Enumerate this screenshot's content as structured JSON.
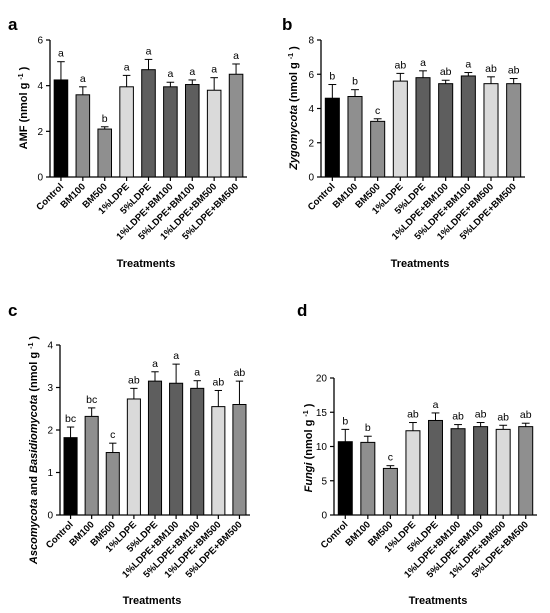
{
  "chart_data": [
    {
      "panel": "a",
      "type": "bar",
      "categories": [
        "Control",
        "BM100",
        "BM500",
        "1%LDPE",
        "5%LDPE",
        "1%LDPE+BM100",
        "5%LDPE+BM100",
        "1%LDPE+BM500",
        "5%LDPE+BM500"
      ],
      "values": [
        4.25,
        3.6,
        2.1,
        3.95,
        4.7,
        3.95,
        4.05,
        3.8,
        4.5
      ],
      "errors": [
        0.8,
        0.35,
        0.1,
        0.5,
        0.45,
        0.2,
        0.2,
        0.55,
        0.45
      ],
      "letters": [
        "a",
        "a",
        "b",
        "a",
        "a",
        "a",
        "a",
        "a",
        "a"
      ],
      "bar_colors": [
        "#000000",
        "#8f8f8f",
        "#8f8f8f",
        "#dadada",
        "#5e5e5e",
        "#5e5e5e",
        "#5e5e5e",
        "#dadada",
        "#8f8f8f"
      ],
      "ylabel": "AMF (nmol g⁻¹)",
      "ylabel_main": "AMF",
      "ylabel_unit": "(nmol g",
      "ylabel_sup": "-1",
      "ylabel_close": ")",
      "xlabel": "Treatments",
      "ylim": [
        0,
        6
      ],
      "yticks": [
        "0",
        "2",
        "4",
        "6"
      ]
    },
    {
      "panel": "b",
      "type": "bar",
      "categories": [
        "Control",
        "BM100",
        "BM500",
        "1%LDPE",
        "5%LDPE",
        "1%LDPE+BM100",
        "5%LDPE+BM100",
        "1%LDPE+BM500",
        "5%LDPE+BM500"
      ],
      "values": [
        4.6,
        4.7,
        3.25,
        5.6,
        5.8,
        5.45,
        5.9,
        5.45,
        5.45
      ],
      "errors": [
        0.8,
        0.4,
        0.15,
        0.45,
        0.4,
        0.2,
        0.2,
        0.4,
        0.3
      ],
      "letters": [
        "b",
        "b",
        "c",
        "ab",
        "a",
        "ab",
        "a",
        "ab",
        "ab"
      ],
      "bar_colors": [
        "#000000",
        "#8f8f8f",
        "#8f8f8f",
        "#dadada",
        "#5e5e5e",
        "#5e5e5e",
        "#5e5e5e",
        "#dadada",
        "#8f8f8f"
      ],
      "ylabel": "Zygomycota (nmol g⁻¹)",
      "ylabel_main": "Zygomycota",
      "ylabel_unit": "(nmol g",
      "ylabel_sup": "-1",
      "ylabel_close": ")",
      "xlabel": "Treatments",
      "ylim": [
        0,
        8
      ],
      "yticks": [
        "0",
        "2",
        "4",
        "6",
        "8"
      ]
    },
    {
      "panel": "c",
      "type": "bar",
      "categories": [
        "Control",
        "BM100",
        "BM500",
        "1%LDPE",
        "5%LDPE",
        "1%LDPE+BM100",
        "5%LDPE+BM100",
        "1%LDPE+BM500",
        "5%LDPE+BM500"
      ],
      "values": [
        1.82,
        2.32,
        1.47,
        2.73,
        3.15,
        3.1,
        2.98,
        2.55,
        2.6
      ],
      "errors": [
        0.25,
        0.2,
        0.22,
        0.25,
        0.22,
        0.45,
        0.18,
        0.38,
        0.55
      ],
      "letters": [
        "bc",
        "bc",
        "c",
        "ab",
        "a",
        "a",
        "a",
        "ab",
        "ab"
      ],
      "bar_colors": [
        "#000000",
        "#8f8f8f",
        "#8f8f8f",
        "#dadada",
        "#5e5e5e",
        "#5e5e5e",
        "#5e5e5e",
        "#dadada",
        "#8f8f8f"
      ],
      "ylabel": "Ascomycota and Basidiomycota (nmol g⁻¹)",
      "ylabel_main": "Ascomycota",
      "ylabel_and": " and ",
      "ylabel_main2": "Basidiomycota",
      "ylabel_unit": " (nmol g",
      "ylabel_sup": "-1",
      "ylabel_close": ")",
      "xlabel": "Treatments",
      "ylim": [
        0,
        4
      ],
      "yticks": [
        "0",
        "1",
        "2",
        "3",
        "4"
      ]
    },
    {
      "panel": "d",
      "type": "bar",
      "categories": [
        "Control",
        "BM100",
        "BM500",
        "1%LDPE",
        "5%LDPE",
        "1%LDPE+BM100",
        "5%LDPE+BM100",
        "1%LDPE+BM500",
        "5%LDPE+BM500"
      ],
      "values": [
        10.7,
        10.6,
        6.8,
        12.3,
        13.8,
        12.6,
        12.9,
        12.5,
        12.9
      ],
      "errors": [
        1.8,
        0.9,
        0.4,
        1.2,
        1.1,
        0.6,
        0.6,
        0.6,
        0.5
      ],
      "letters": [
        "b",
        "b",
        "c",
        "ab",
        "a",
        "ab",
        "ab",
        "ab",
        "ab"
      ],
      "bar_colors": [
        "#000000",
        "#8f8f8f",
        "#8f8f8f",
        "#dadada",
        "#5e5e5e",
        "#5e5e5e",
        "#5e5e5e",
        "#dadada",
        "#8f8f8f"
      ],
      "ylabel": "Fungi (nmol g⁻¹)",
      "ylabel_main": "Fungi",
      "ylabel_unit": " (nmol g",
      "ylabel_sup": "-1",
      "ylabel_close": ")",
      "xlabel": "Treatments",
      "ylim": [
        0,
        20
      ],
      "yticks": [
        "0",
        "5",
        "10",
        "15",
        "20"
      ]
    }
  ]
}
